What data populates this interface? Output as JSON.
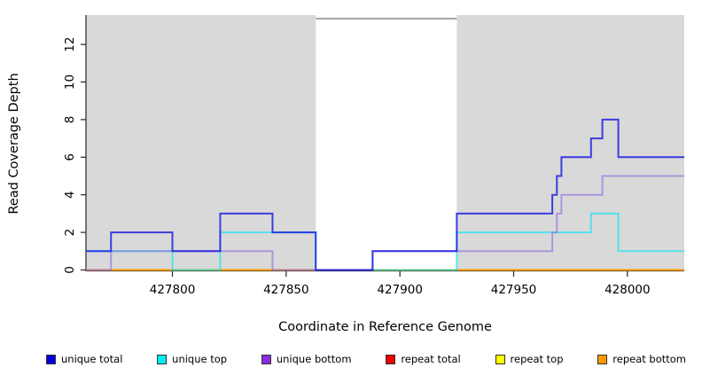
{
  "chart_data": {
    "type": "line",
    "subtype": "step-coverage",
    "title": "",
    "xlabel": "Coordinate in Reference Genome",
    "ylabel": "Read Coverage Depth",
    "xlim": [
      427762,
      428025
    ],
    "ylim": [
      0,
      13.5
    ],
    "x_ticks": [
      427800,
      427850,
      427900,
      427950,
      428000
    ],
    "y_ticks": [
      0,
      2,
      4,
      6,
      8,
      10,
      12
    ],
    "grid": false,
    "plot_bg": "#d9d9d9",
    "gap_region": {
      "start": 427863,
      "end": 427925,
      "fill": "#ffffff",
      "top_line_color": "#8a8a8a"
    },
    "legend_position": "bottom",
    "draw_order": [
      "repeat total",
      "repeat top",
      "repeat bottom",
      "unique top",
      "unique bottom",
      "unique total"
    ],
    "series": [
      {
        "name": "unique total",
        "color": "#2020e0",
        "opacity": 0.85,
        "steps": [
          [
            427762,
            1
          ],
          [
            427773,
            2
          ],
          [
            427800,
            1
          ],
          [
            427821,
            3
          ],
          [
            427844,
            2
          ],
          [
            427863,
            0
          ],
          [
            427888,
            1
          ],
          [
            427925,
            3
          ],
          [
            427967,
            4
          ],
          [
            427969,
            5
          ],
          [
            427971,
            6
          ],
          [
            427984,
            7
          ],
          [
            427989,
            8
          ],
          [
            427996,
            6
          ]
        ]
      },
      {
        "name": "unique top",
        "color": "#00e6f0",
        "opacity": 0.62,
        "steps": [
          [
            427762,
            1
          ],
          [
            427800,
            0
          ],
          [
            427821,
            2
          ],
          [
            427863,
            0
          ],
          [
            427925,
            2
          ],
          [
            427984,
            3
          ],
          [
            427996,
            1
          ]
        ]
      },
      {
        "name": "unique bottom",
        "color": "#9370db",
        "opacity": 0.65,
        "steps": [
          [
            427762,
            0
          ],
          [
            427773,
            1
          ],
          [
            427844,
            0
          ],
          [
            427888,
            1
          ],
          [
            427967,
            2
          ],
          [
            427969,
            3
          ],
          [
            427971,
            4
          ],
          [
            427989,
            5
          ]
        ]
      },
      {
        "name": "repeat total",
        "color": "#e02040",
        "opacity": 1,
        "steps": [
          [
            427762,
            0
          ]
        ]
      },
      {
        "name": "repeat top",
        "color": "#ffe100",
        "opacity": 1,
        "steps": [
          [
            427762,
            0
          ]
        ]
      },
      {
        "name": "repeat bottom",
        "color": "#ff9e00",
        "opacity": 1,
        "steps": [
          [
            427762,
            0
          ]
        ]
      }
    ]
  },
  "legend": {
    "items": [
      {
        "label": "unique total",
        "color": "#0000dd"
      },
      {
        "label": "unique top",
        "color": "#00eeee"
      },
      {
        "label": "unique bottom",
        "color": "#8b2be2"
      },
      {
        "label": "repeat total",
        "color": "#ee0000"
      },
      {
        "label": "repeat top",
        "color": "#ffff00"
      },
      {
        "label": "repeat bottom",
        "color": "#ff9900"
      }
    ]
  },
  "axis": {
    "line_color": "#262626",
    "tick_label_color": "#000000"
  }
}
